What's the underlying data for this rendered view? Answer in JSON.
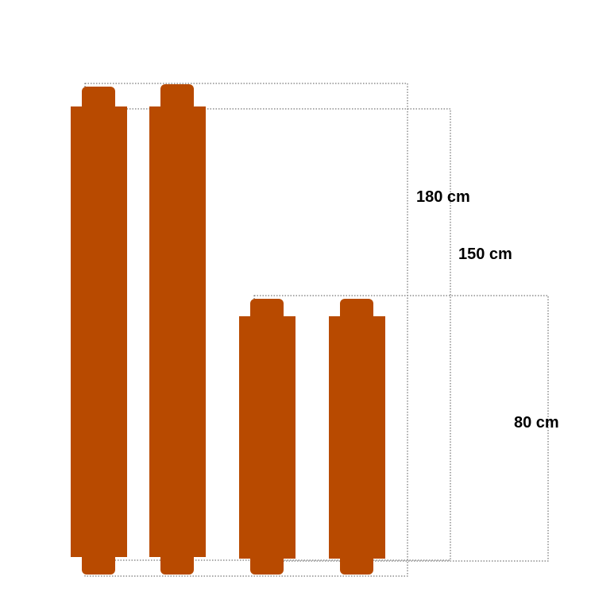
{
  "colors": {
    "roll": "#b84a00",
    "background": "#ffffff",
    "dimension_line": "#555555",
    "label_text": "#000000"
  },
  "rolls": [
    {
      "name": "tall-roll-1",
      "height_cm": 180
    },
    {
      "name": "tall-roll-2",
      "height_cm": 180
    },
    {
      "name": "short-roll-1",
      "height_cm": 80
    },
    {
      "name": "short-roll-2",
      "height_cm": 80
    }
  ],
  "dimensions": {
    "d180": "180 cm",
    "d150": "150 cm",
    "d80": "80 cm"
  }
}
